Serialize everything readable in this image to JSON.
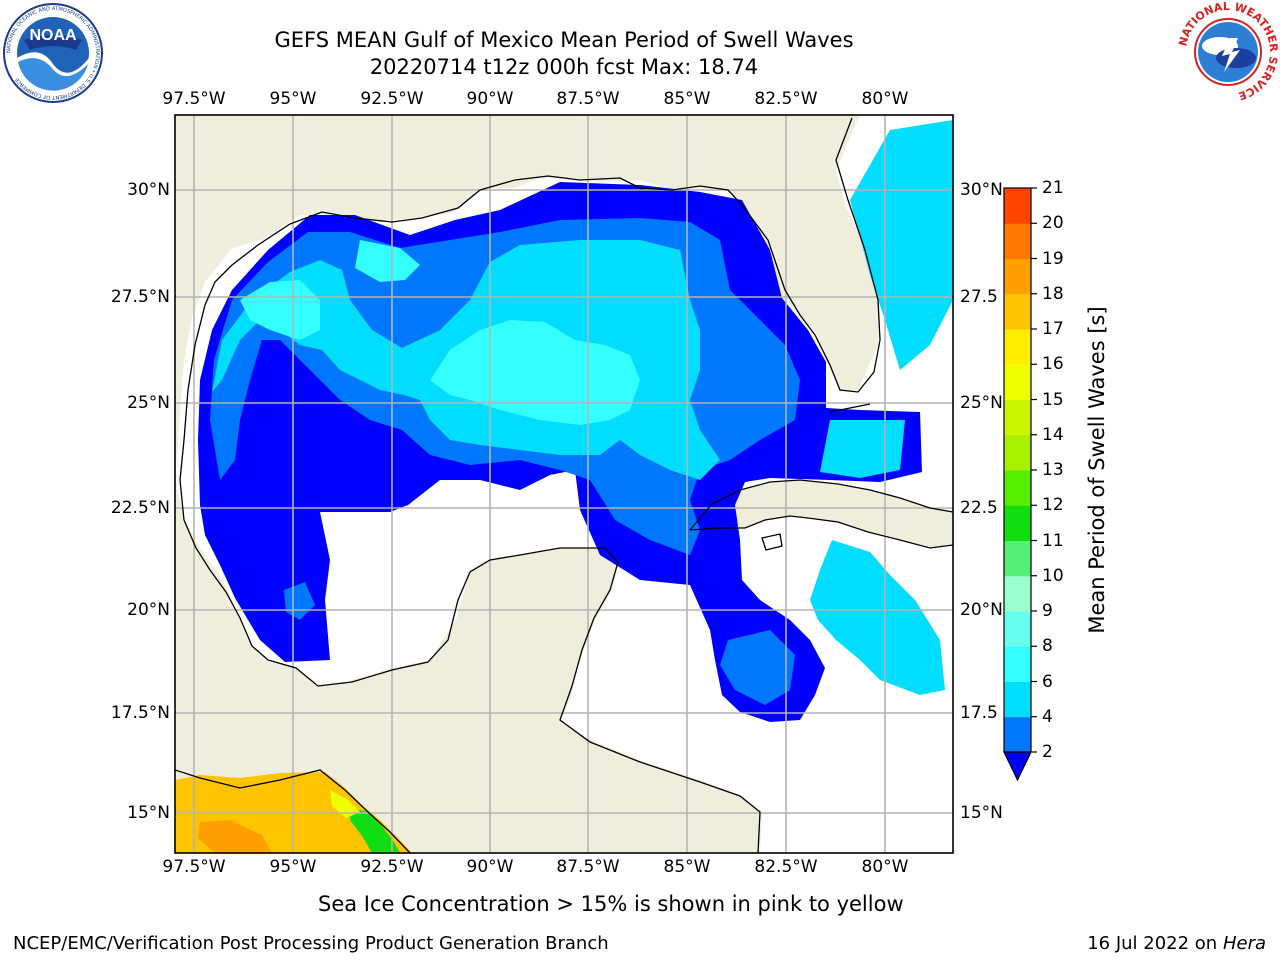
{
  "header": {
    "title_line1": "GEFS MEAN Gulf of Mexico Mean Period of Swell Waves",
    "title_line2": "20220714 t12z 000h fcst   Max: 18.74"
  },
  "logos": {
    "left": "NOAA",
    "left_ring_text": "NATIONAL OCEANIC AND ATMOSPHERIC ADMINISTRATION • U.S. DEPARTMENT OF COMMERCE",
    "right_ring_text": "NATIONAL WEATHER SERVICE"
  },
  "map": {
    "lon_labels": [
      "97.5°W",
      "95°W",
      "92.5°W",
      "90°W",
      "87.5°W",
      "85°W",
      "82.5°W",
      "80°W"
    ],
    "lat_labels_left": [
      "30°N",
      "27.5°N",
      "25°N",
      "22.5°N",
      "20°N",
      "17.5°N",
      "15°N"
    ],
    "lat_labels_right": [
      "30°N",
      "27.5",
      "25°N",
      "22.5",
      "20°N",
      "17.5",
      "15°N"
    ],
    "land_color": "#efeedc",
    "grid_color": "#b4b4b4"
  },
  "colorbar": {
    "label": "Mean Period of Swell Waves [s]",
    "ticks": [
      "2",
      "4",
      "6",
      "8",
      "9",
      "10",
      "11",
      "12",
      "13",
      "14",
      "15",
      "16",
      "17",
      "18",
      "19",
      "20",
      "21"
    ],
    "colors": [
      "#0077ff",
      "#00ddff",
      "#33ffff",
      "#66ffee",
      "#99ffcc",
      "#55ee77",
      "#11dd11",
      "#55ee00",
      "#aaee00",
      "#ccf500",
      "#eeff00",
      "#ffee00",
      "#ffc400",
      "#ffa000",
      "#ff7800",
      "#ff4400",
      "#ff0000"
    ],
    "under_color": "#0000ff"
  },
  "footer": {
    "note": "Sea Ice Concentration > 15% is shown in pink to yellow",
    "credit": "NCEP/EMC/Verification Post Processing Product Generation Branch",
    "date": "16 Jul 2022 on",
    "machine": "Hera"
  }
}
